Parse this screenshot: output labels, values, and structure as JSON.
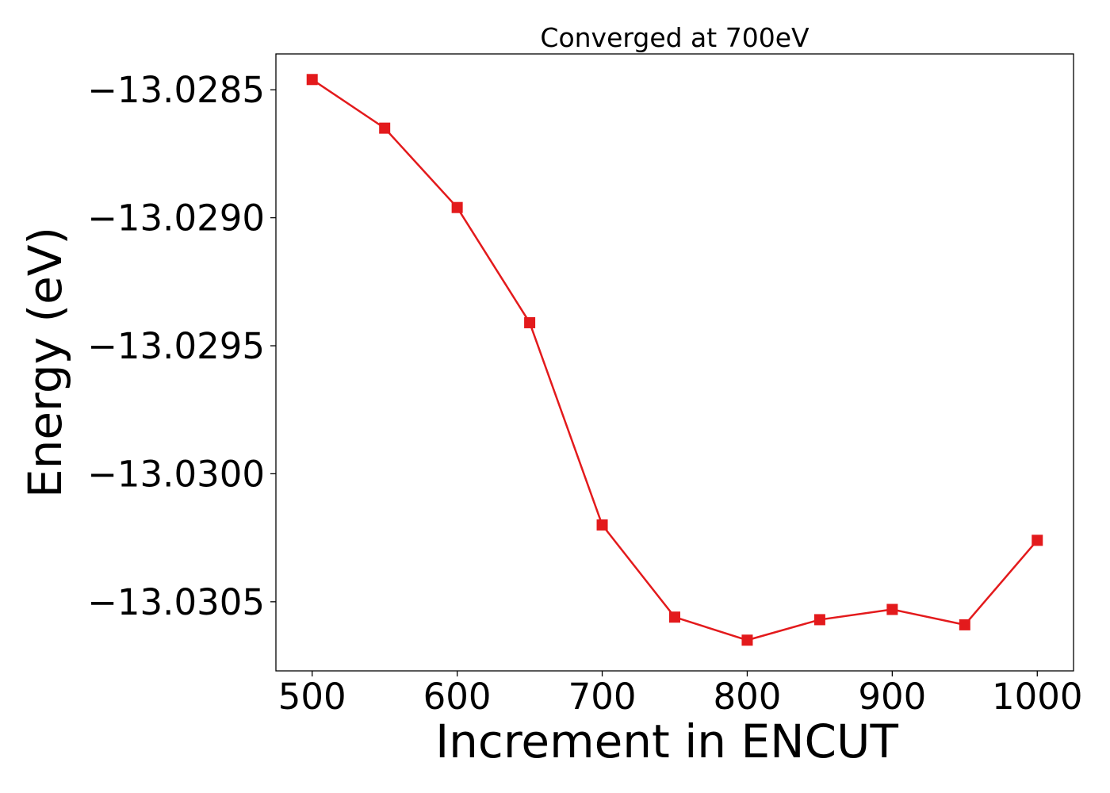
{
  "chart_data": {
    "type": "line",
    "title": "Converged at 700eV",
    "xlabel": "Increment in ENCUT",
    "ylabel": "Energy (eV)",
    "x": [
      500,
      550,
      600,
      650,
      700,
      750,
      800,
      850,
      900,
      950,
      1000
    ],
    "series": [
      {
        "values": [
          -13.02846,
          -13.02865,
          -13.02896,
          -13.02941,
          -13.0302,
          -13.03056,
          -13.03065,
          -13.03057,
          -13.03053,
          -13.03059,
          -13.03026
        ],
        "color": "#e31a1c",
        "marker": "square"
      }
    ],
    "xlim": [
      475,
      1025
    ],
    "ylim": [
      -13.03077,
      -13.02836
    ],
    "xticks": [
      500,
      600,
      700,
      800,
      900,
      1000
    ],
    "xtick_labels": [
      "500",
      "600",
      "700",
      "800",
      "900",
      "1000"
    ],
    "yticks": [
      -13.0285,
      -13.029,
      -13.0295,
      -13.03,
      -13.0305
    ],
    "ytick_labels": [
      "−13.0285",
      "−13.0290",
      "−13.0295",
      "−13.0300",
      "−13.0305"
    ],
    "grid": false,
    "legend": "none"
  }
}
